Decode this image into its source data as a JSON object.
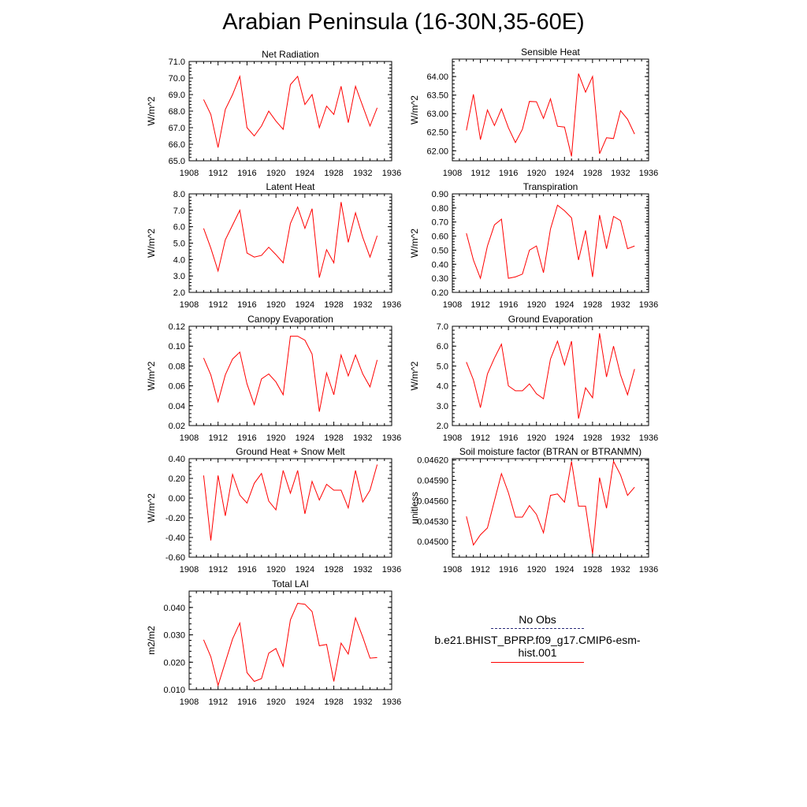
{
  "title": "Arabian Peninsula (16-30N,35-60E)",
  "legend": {
    "obs_label": "No Obs",
    "model_label": "b.e21.BHIST_BPRP.f09_g17.CMIP6-esm-hist.001",
    "model_color": "#ff0000",
    "obs_color": "#2a2a7a"
  },
  "chart_data": [
    {
      "type": "line",
      "title": "Net Radiation",
      "ylabel": "W/m^2",
      "xlim": [
        1908,
        1936
      ],
      "ylim": [
        65.0,
        71.0
      ],
      "xticks": [
        "1908",
        "1912",
        "1916",
        "1920",
        "1924",
        "1928",
        "1932",
        "1936"
      ],
      "yticks": [
        "65.0",
        "66.0",
        "67.0",
        "68.0",
        "69.0",
        "70.0",
        "71.0"
      ],
      "x": [
        1910,
        1911,
        1912,
        1913,
        1914,
        1915,
        1916,
        1917,
        1918,
        1919,
        1920,
        1921,
        1922,
        1923,
        1924,
        1925,
        1926,
        1927,
        1928,
        1929,
        1930,
        1931,
        1932,
        1933,
        1934
      ],
      "series": [
        {
          "name": "b.e21.BHIST_BPRP.f09_g17.CMIP6-esm-hist.001",
          "values": [
            68.7,
            67.8,
            65.8,
            68.1,
            69.0,
            70.1,
            67.0,
            66.5,
            67.1,
            68.0,
            67.4,
            66.9,
            69.6,
            70.1,
            68.4,
            69.0,
            67.0,
            68.3,
            67.8,
            69.5,
            67.3,
            69.5,
            68.3,
            67.1,
            68.2
          ]
        }
      ]
    },
    {
      "type": "line",
      "title": "Sensible Heat",
      "ylabel": "W/m^2",
      "xlim": [
        1908,
        1936
      ],
      "ylim": [
        61.73,
        64.47
      ],
      "xticks": [
        "1908",
        "1912",
        "1916",
        "1920",
        "1924",
        "1928",
        "1932",
        "1936"
      ],
      "yticks": [
        "62.00",
        "62.50",
        "63.00",
        "63.50",
        "64.00"
      ],
      "x": [
        1910,
        1911,
        1912,
        1913,
        1914,
        1915,
        1916,
        1917,
        1918,
        1919,
        1920,
        1921,
        1922,
        1923,
        1924,
        1925,
        1926,
        1927,
        1928,
        1929,
        1930,
        1931,
        1932,
        1933,
        1934
      ],
      "series": [
        {
          "name": "b.e21.BHIST_BPRP.f09_g17.CMIP6-esm-hist.001",
          "values": [
            62.55,
            63.52,
            62.3,
            63.1,
            62.68,
            63.13,
            62.62,
            62.22,
            62.58,
            63.33,
            63.32,
            62.87,
            63.4,
            62.66,
            62.64,
            61.85,
            64.08,
            63.58,
            64.0,
            61.92,
            62.35,
            62.33,
            63.08,
            62.85,
            62.45
          ]
        }
      ]
    },
    {
      "type": "line",
      "title": "Latent Heat",
      "ylabel": "W/m^2",
      "xlim": [
        1908,
        1936
      ],
      "ylim": [
        2.0,
        8.0
      ],
      "xticks": [
        "1908",
        "1912",
        "1916",
        "1920",
        "1924",
        "1928",
        "1932",
        "1936"
      ],
      "yticks": [
        "2.0",
        "3.0",
        "4.0",
        "5.0",
        "6.0",
        "7.0",
        "8.0"
      ],
      "x": [
        1910,
        1911,
        1912,
        1913,
        1914,
        1915,
        1916,
        1917,
        1918,
        1919,
        1920,
        1921,
        1922,
        1923,
        1924,
        1925,
        1926,
        1927,
        1928,
        1929,
        1930,
        1931,
        1932,
        1933,
        1934
      ],
      "series": [
        {
          "name": "b.e21.BHIST_BPRP.f09_g17.CMIP6-esm-hist.001",
          "values": [
            5.9,
            4.7,
            3.3,
            5.2,
            6.1,
            7.0,
            4.4,
            4.15,
            4.25,
            4.75,
            4.3,
            3.8,
            6.2,
            7.2,
            5.9,
            7.1,
            2.9,
            4.6,
            3.8,
            7.5,
            5.05,
            6.85,
            5.35,
            4.15,
            5.45
          ]
        }
      ]
    },
    {
      "type": "line",
      "title": "Transpiration",
      "ylabel": "W/m^2",
      "xlim": [
        1908,
        1936
      ],
      "ylim": [
        0.2,
        0.9
      ],
      "xticks": [
        "1908",
        "1912",
        "1916",
        "1920",
        "1924",
        "1928",
        "1932",
        "1936"
      ],
      "yticks": [
        "0.20",
        "0.30",
        "0.40",
        "0.50",
        "0.60",
        "0.70",
        "0.80",
        "0.90"
      ],
      "x": [
        1910,
        1911,
        1912,
        1913,
        1914,
        1915,
        1916,
        1917,
        1918,
        1919,
        1920,
        1921,
        1922,
        1923,
        1924,
        1925,
        1926,
        1927,
        1928,
        1929,
        1930,
        1931,
        1932,
        1933,
        1934
      ],
      "series": [
        {
          "name": "b.e21.BHIST_BPRP.f09_g17.CMIP6-esm-hist.001",
          "values": [
            0.62,
            0.43,
            0.3,
            0.53,
            0.68,
            0.72,
            0.3,
            0.31,
            0.33,
            0.5,
            0.53,
            0.34,
            0.65,
            0.82,
            0.78,
            0.73,
            0.43,
            0.64,
            0.31,
            0.75,
            0.51,
            0.74,
            0.71,
            0.51,
            0.53
          ]
        }
      ]
    },
    {
      "type": "line",
      "title": "Canopy Evaporation",
      "ylabel": "W/m^2",
      "xlim": [
        1908,
        1936
      ],
      "ylim": [
        0.02,
        0.12
      ],
      "xticks": [
        "1908",
        "1912",
        "1916",
        "1920",
        "1924",
        "1928",
        "1932",
        "1936"
      ],
      "yticks": [
        "0.02",
        "0.04",
        "0.06",
        "0.08",
        "0.10",
        "0.12"
      ],
      "x": [
        1910,
        1911,
        1912,
        1913,
        1914,
        1915,
        1916,
        1917,
        1918,
        1919,
        1920,
        1921,
        1922,
        1923,
        1924,
        1925,
        1926,
        1927,
        1928,
        1929,
        1930,
        1931,
        1932,
        1933,
        1934
      ],
      "series": [
        {
          "name": "b.e21.BHIST_BPRP.f09_g17.CMIP6-esm-hist.001",
          "values": [
            0.088,
            0.071,
            0.044,
            0.071,
            0.087,
            0.094,
            0.062,
            0.041,
            0.067,
            0.072,
            0.064,
            0.051,
            0.11,
            0.11,
            0.106,
            0.092,
            0.034,
            0.073,
            0.051,
            0.091,
            0.07,
            0.091,
            0.072,
            0.059,
            0.086
          ]
        }
      ]
    },
    {
      "type": "line",
      "title": "Ground Evaporation",
      "ylabel": "W/m^2",
      "xlim": [
        1908,
        1936
      ],
      "ylim": [
        2.0,
        7.0
      ],
      "xticks": [
        "1908",
        "1912",
        "1916",
        "1920",
        "1924",
        "1928",
        "1932",
        "1936"
      ],
      "yticks": [
        "2.0",
        "3.0",
        "4.0",
        "5.0",
        "6.0",
        "7.0"
      ],
      "x": [
        1910,
        1911,
        1912,
        1913,
        1914,
        1915,
        1916,
        1917,
        1918,
        1919,
        1920,
        1921,
        1922,
        1923,
        1924,
        1925,
        1926,
        1927,
        1928,
        1929,
        1930,
        1931,
        1932,
        1933,
        1934
      ],
      "series": [
        {
          "name": "b.e21.BHIST_BPRP.f09_g17.CMIP6-esm-hist.001",
          "values": [
            5.2,
            4.3,
            2.9,
            4.6,
            5.4,
            6.1,
            4.0,
            3.75,
            3.75,
            4.1,
            3.6,
            3.35,
            5.35,
            6.25,
            5.05,
            6.25,
            2.35,
            3.9,
            3.4,
            6.65,
            4.45,
            6.0,
            4.55,
            3.55,
            4.85
          ]
        }
      ]
    },
    {
      "type": "line",
      "title": "Ground Heat + Snow Melt",
      "ylabel": "W/m^2",
      "xlim": [
        1908,
        1936
      ],
      "ylim": [
        -0.6,
        0.4
      ],
      "xticks": [
        "1908",
        "1912",
        "1916",
        "1920",
        "1924",
        "1928",
        "1932",
        "1936"
      ],
      "yticks": [
        "-0.60",
        "-0.40",
        "-0.20",
        "0.00",
        "0.20",
        "0.40"
      ],
      "x": [
        1910,
        1911,
        1912,
        1913,
        1914,
        1915,
        1916,
        1917,
        1918,
        1919,
        1920,
        1921,
        1922,
        1923,
        1924,
        1925,
        1926,
        1927,
        1928,
        1929,
        1930,
        1931,
        1932,
        1933,
        1934
      ],
      "series": [
        {
          "name": "b.e21.BHIST_BPRP.f09_g17.CMIP6-esm-hist.001",
          "values": [
            0.23,
            -0.43,
            0.23,
            -0.18,
            0.24,
            0.03,
            -0.05,
            0.15,
            0.25,
            -0.03,
            -0.12,
            0.28,
            0.05,
            0.28,
            -0.16,
            0.17,
            -0.02,
            0.14,
            0.08,
            0.08,
            -0.1,
            0.28,
            -0.04,
            0.08,
            0.34
          ]
        }
      ]
    },
    {
      "type": "line",
      "title": "Soil moisture factor (BTRAN or BTRANMN)",
      "ylabel": "unitless",
      "xlim": [
        1908,
        1936
      ],
      "ylim": [
        0.04477,
        0.04622
      ],
      "xticks": [
        "1908",
        "1912",
        "1916",
        "1920",
        "1924",
        "1928",
        "1932",
        "1936"
      ],
      "yticks": [
        "0.04500",
        "0.04530",
        "0.04560",
        "0.04590",
        "0.04620"
      ],
      "x": [
        1910,
        1911,
        1912,
        1913,
        1914,
        1915,
        1916,
        1917,
        1918,
        1919,
        1920,
        1921,
        1922,
        1923,
        1924,
        1925,
        1926,
        1927,
        1928,
        1929,
        1930,
        1931,
        1932,
        1933,
        1934
      ],
      "series": [
        {
          "name": "b.e21.BHIST_BPRP.f09_g17.CMIP6-esm-hist.001",
          "values": [
            0.04537,
            0.04495,
            0.0451,
            0.0452,
            0.0456,
            0.046,
            0.04572,
            0.04536,
            0.04536,
            0.04553,
            0.0454,
            0.04513,
            0.04568,
            0.0457,
            0.04558,
            0.04618,
            0.04552,
            0.04552,
            0.04482,
            0.04594,
            0.04549,
            0.04618,
            0.04598,
            0.04568,
            0.0458
          ]
        }
      ]
    },
    {
      "type": "line",
      "title": "Total LAI",
      "ylabel": "m2/m2",
      "xlim": [
        1908,
        1936
      ],
      "ylim": [
        0.01,
        0.046
      ],
      "xticks": [
        "1908",
        "1912",
        "1916",
        "1920",
        "1924",
        "1928",
        "1932",
        "1936"
      ],
      "yticks": [
        "0.010",
        "0.020",
        "0.030",
        "0.040"
      ],
      "x": [
        1910,
        1911,
        1912,
        1913,
        1914,
        1915,
        1916,
        1917,
        1918,
        1919,
        1920,
        1921,
        1922,
        1923,
        1924,
        1925,
        1926,
        1927,
        1928,
        1929,
        1930,
        1931,
        1932,
        1933,
        1934
      ],
      "series": [
        {
          "name": "b.e21.BHIST_BPRP.f09_g17.CMIP6-esm-hist.001",
          "values": [
            0.0282,
            0.022,
            0.0115,
            0.02,
            0.0285,
            0.0343,
            0.0162,
            0.013,
            0.014,
            0.0233,
            0.025,
            0.0185,
            0.0355,
            0.0415,
            0.0412,
            0.0385,
            0.026,
            0.0265,
            0.013,
            0.027,
            0.023,
            0.0362,
            0.0292,
            0.0215,
            0.0217
          ]
        }
      ]
    }
  ]
}
